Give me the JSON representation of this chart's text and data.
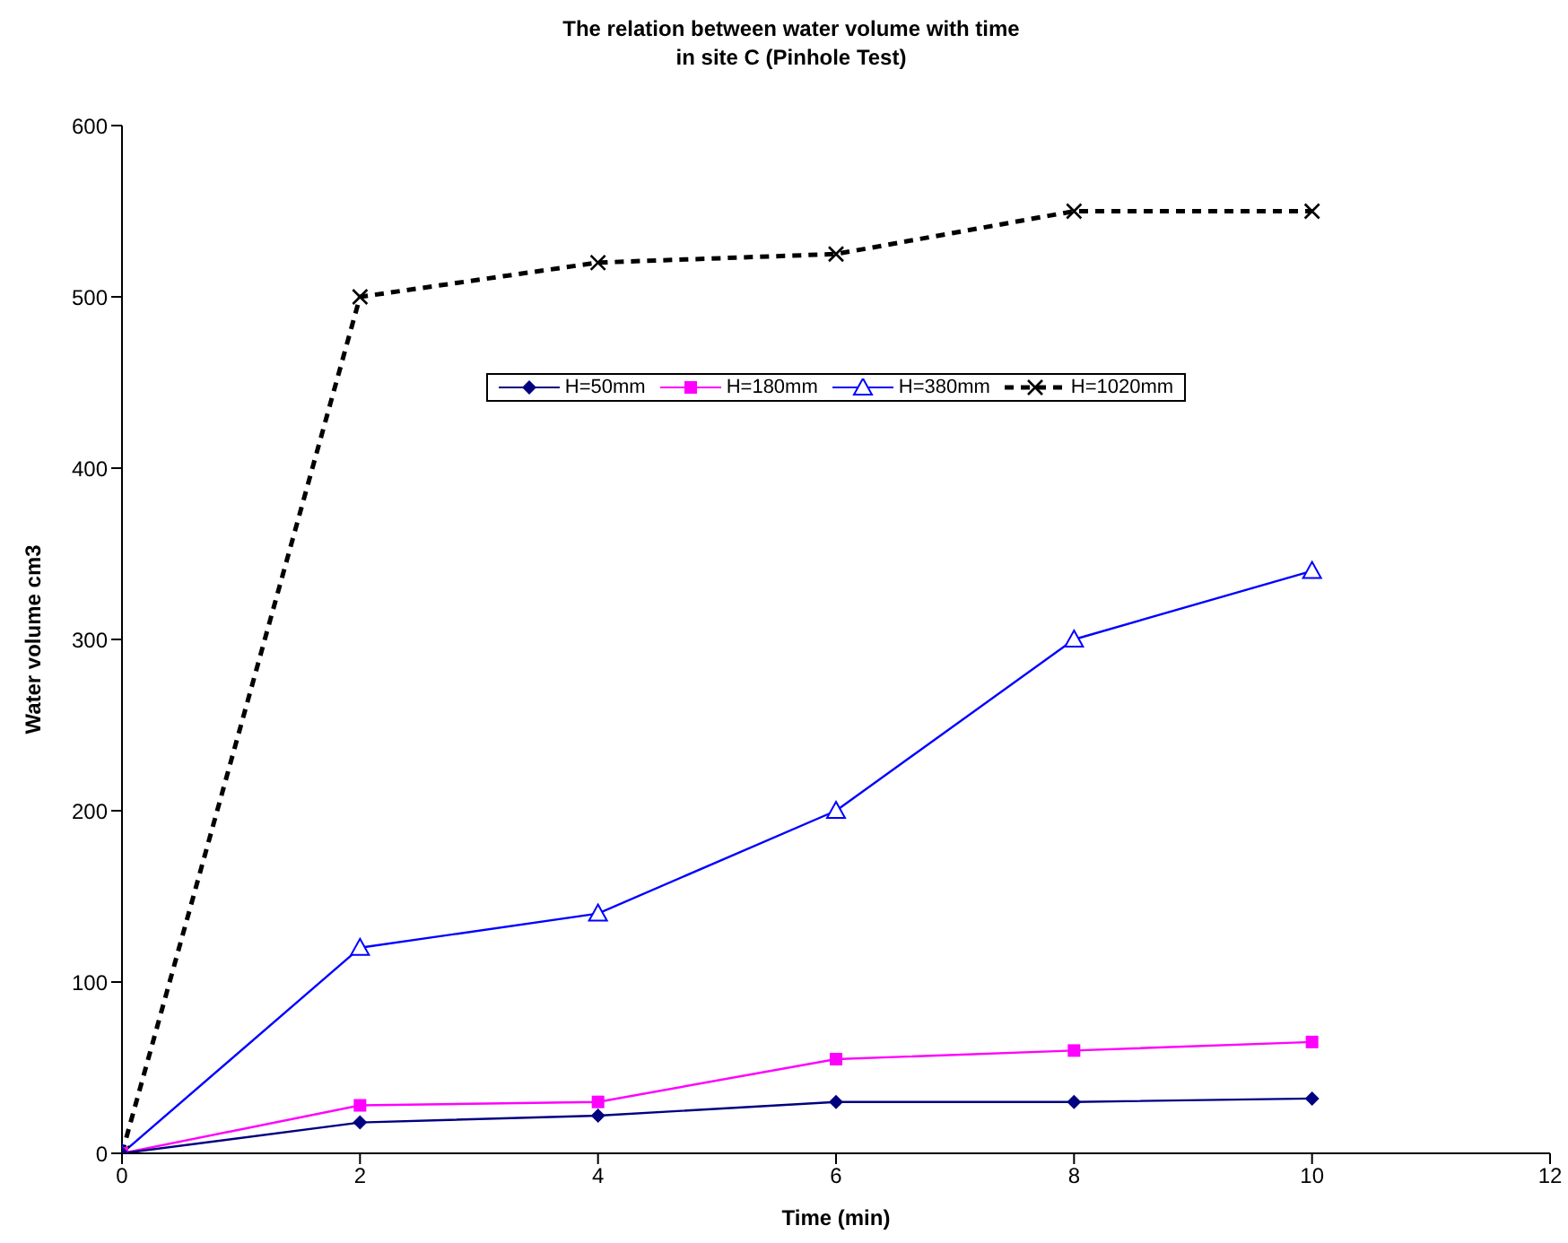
{
  "chart_data": {
    "type": "line",
    "title": "The relation between water volume with time\nin site C (Pinhole Test)",
    "xlabel": "Time (min)",
    "ylabel": "Water volume cm3",
    "x": [
      0,
      2,
      4,
      6,
      8,
      10
    ],
    "xlim": [
      0,
      12
    ],
    "xticks": [
      0,
      2,
      4,
      6,
      8,
      10,
      12
    ],
    "ylim": [
      0,
      600
    ],
    "yticks": [
      0,
      100,
      200,
      300,
      400,
      500,
      600
    ],
    "legend": "top",
    "series": [
      {
        "name": "H=50mm",
        "color": "#000080",
        "marker": "diamond",
        "line_style": "solid",
        "values": [
          0,
          18,
          22,
          30,
          30,
          32
        ]
      },
      {
        "name": "H=180mm",
        "color": "#ff00ff",
        "marker": "square",
        "line_style": "solid",
        "values": [
          0,
          28,
          30,
          55,
          60,
          65
        ]
      },
      {
        "name": "H=380mm",
        "color": "#0000ff",
        "marker": "triangle",
        "line_style": "solid",
        "values": [
          0,
          120,
          140,
          200,
          300,
          340
        ]
      },
      {
        "name": "H=1020mm",
        "color": "#000000",
        "marker": "cross",
        "line_style": "dashed",
        "values": [
          0,
          500,
          520,
          525,
          550,
          550
        ]
      }
    ]
  }
}
